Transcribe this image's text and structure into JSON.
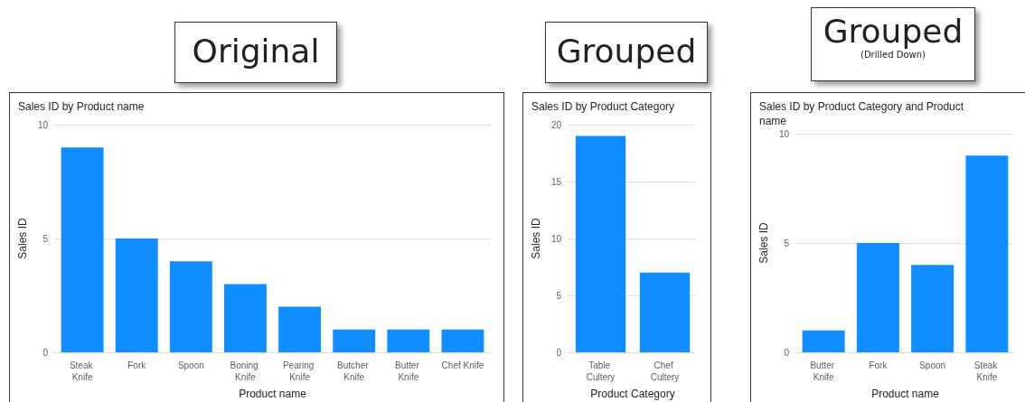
{
  "chart_data": [
    {
      "type": "bar",
      "title": "Original",
      "subtitle": "Sales ID by Product name",
      "xlabel": "Product name",
      "ylabel": "Sales ID",
      "categories": [
        "Steak Knife",
        "Fork",
        "Spoon",
        "Boning Knife",
        "Pearing Knife",
        "Butcher Knife",
        "Butter Knife",
        "Chef Knife"
      ],
      "values": [
        9,
        5,
        4,
        3,
        2,
        1,
        1,
        1
      ],
      "color": "#118dff",
      "ylim": [
        0,
        10
      ],
      "yticks": [
        0,
        5,
        10
      ],
      "grid": "y"
    },
    {
      "type": "bar",
      "title": "Grouped",
      "subtitle": "Sales ID by Product Category",
      "xlabel": "Product Category",
      "ylabel": "Sales ID",
      "categories": [
        "Table Cultery",
        "Chef Cultery"
      ],
      "values": [
        19,
        7
      ],
      "color": "#118dff",
      "ylim": [
        0,
        20
      ],
      "yticks": [
        0,
        5,
        10,
        15,
        20
      ],
      "grid": "y"
    },
    {
      "type": "bar",
      "title": "Grouped",
      "annotations": [
        "(Drilled Down)"
      ],
      "subtitle": "Sales ID by Product Category and Product name",
      "xlabel": "Product name",
      "ylabel": "Sales ID",
      "categories": [
        "Butter Knife",
        "Fork",
        "Spoon",
        "Steak Knife"
      ],
      "values": [
        1,
        5,
        4,
        9
      ],
      "color": "#118dff",
      "ylim": [
        0,
        10
      ],
      "yticks": [
        0,
        5,
        10
      ],
      "grid": "y"
    }
  ]
}
